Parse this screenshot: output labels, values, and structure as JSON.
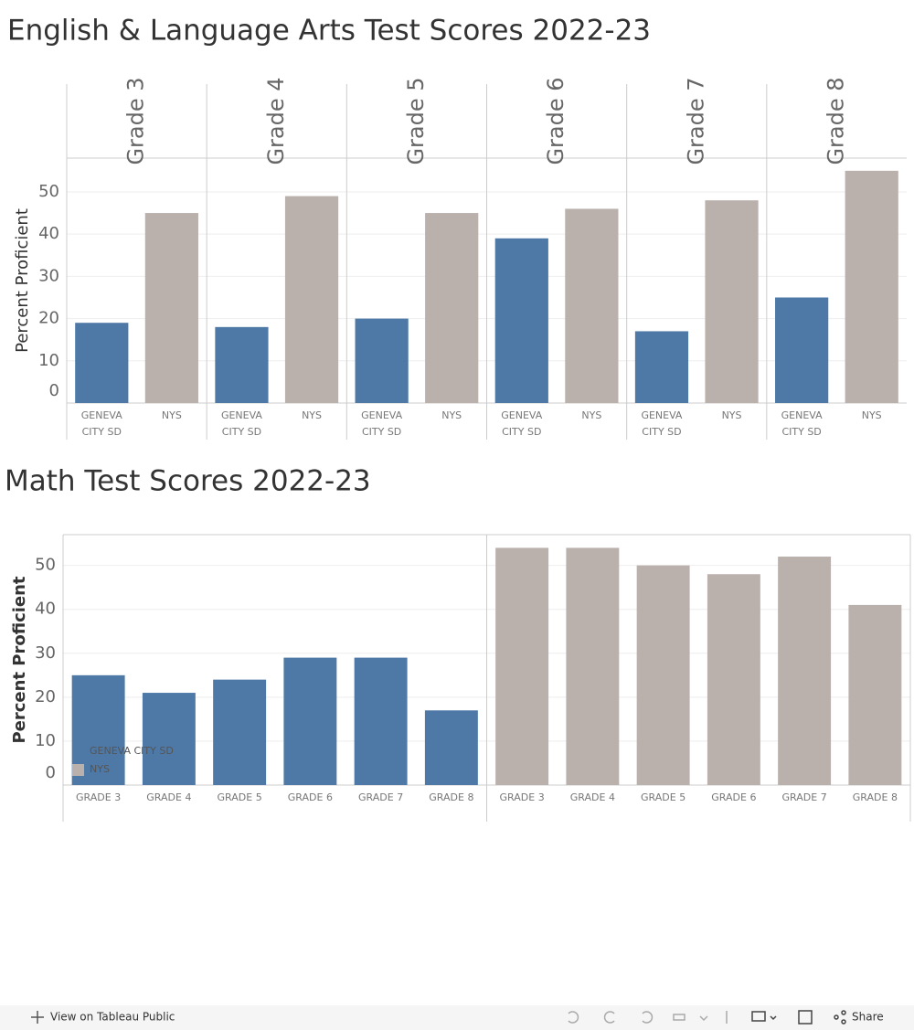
{
  "chart_data": [
    {
      "type": "bar",
      "facet_by": "category",
      "title": "English & Language Arts Test Scores 2022-23",
      "y_label": "Percent Proficient",
      "categories": [
        "Grade 3",
        "Grade 4",
        "Grade 5",
        "Grade 6",
        "Grade 7",
        "Grade 8"
      ],
      "series": [
        {
          "name": "GENEVA CITY SD",
          "color": "#4e79a7",
          "values": [
            19,
            18,
            20,
            39,
            17,
            25
          ]
        },
        {
          "name": "NYS",
          "color": "#bab0ac",
          "values": [
            45,
            49,
            45,
            46,
            48,
            55
          ]
        }
      ],
      "ylim": [
        0,
        58
      ],
      "yticks": [
        0,
        10,
        20,
        30,
        40,
        50
      ],
      "grid": true
    },
    {
      "type": "bar",
      "facet_by": "series",
      "title": "Math Test Scores 2022-23",
      "y_label": "Percent Proficient",
      "categories": [
        "GRADE 3",
        "GRADE 4",
        "GRADE 5",
        "GRADE 6",
        "GRADE 7",
        "GRADE 8"
      ],
      "series": [
        {
          "name": "GENEVA CITY SD",
          "color": "#4e79a7",
          "values": [
            25,
            21,
            24,
            29,
            29,
            17
          ]
        },
        {
          "name": "NYS",
          "color": "#bab0ac",
          "values": [
            54,
            54,
            50,
            48,
            52,
            41
          ]
        }
      ],
      "ylim": [
        0,
        57
      ],
      "yticks": [
        0,
        10,
        20,
        30,
        40,
        50
      ],
      "grid": true,
      "legend": "lower left"
    }
  ],
  "toolbar": {
    "view_link": "View on Tableau Public",
    "share": "Share"
  }
}
